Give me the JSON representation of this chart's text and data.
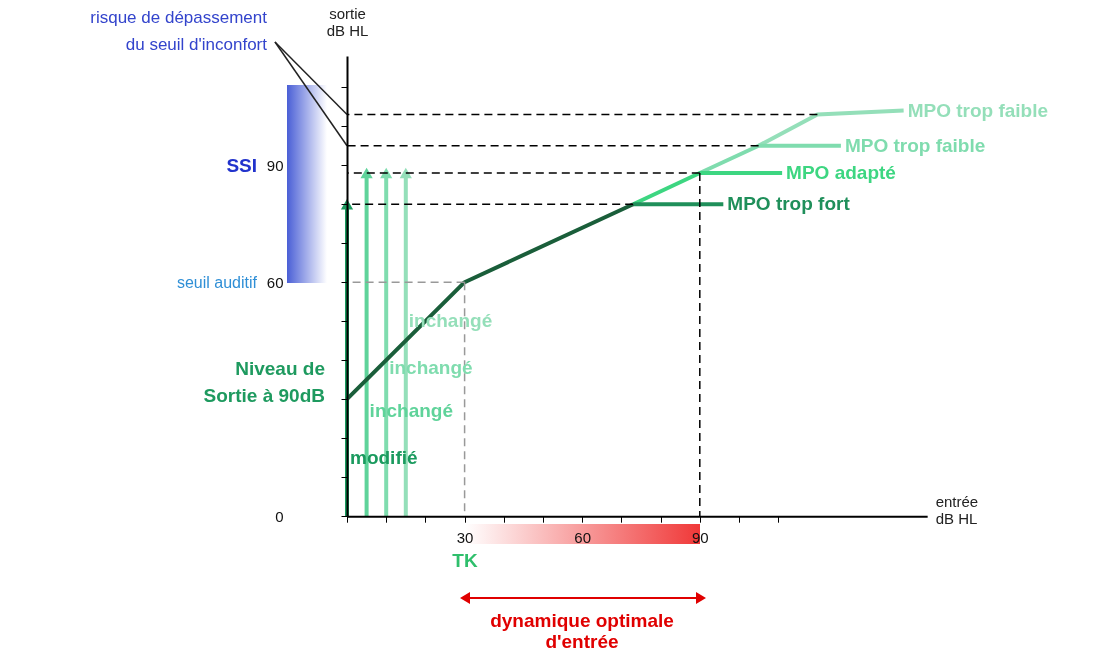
{
  "chart_data": {
    "type": "line",
    "xlabel": "entrée dB HL",
    "ylabel": "sortie dB HL",
    "xlim": [
      0,
      148
    ],
    "ylim": [
      0,
      118
    ],
    "xticks": [
      {
        "value": 0,
        "label": null
      },
      {
        "value": 10,
        "label": null
      },
      {
        "value": 20,
        "label": null
      },
      30,
      {
        "value": 40,
        "label": null
      },
      {
        "value": 50,
        "label": null
      },
      60,
      {
        "value": 70,
        "label": null
      },
      {
        "value": 80,
        "label": null
      },
      90,
      {
        "value": 100,
        "label": null
      },
      {
        "value": 110,
        "label": null
      }
    ],
    "yticks": [
      0,
      {
        "value": 10,
        "label": null
      },
      {
        "value": 20,
        "label": null
      },
      {
        "value": 30,
        "label": null
      },
      {
        "value": 40,
        "label": null
      },
      {
        "value": 50,
        "label": null
      },
      60,
      {
        "value": 70,
        "label": null
      },
      {
        "value": 80,
        "label": null
      },
      90,
      {
        "value": 100,
        "label": null
      },
      {
        "value": 110,
        "label": null
      }
    ],
    "series": [
      {
        "x": [
          0,
          120
        ],
        "values": [
          103,
          103
        ],
        "color": "#000000",
        "line_style": "dashed"
      },
      {
        "x": [
          0,
          105
        ],
        "values": [
          95,
          95
        ],
        "color": "#000000",
        "line_style": "dashed"
      },
      {
        "x": [
          0,
          90
        ],
        "values": [
          88,
          88
        ],
        "color": "#000000",
        "line_style": "dashed"
      },
      {
        "x": [
          0,
          73
        ],
        "values": [
          80,
          80
        ],
        "color": "#000000",
        "line_style": "dashed"
      },
      {
        "x": [
          90,
          90
        ],
        "values": [
          0,
          88
        ],
        "color": "#000000",
        "line_style": "dashed"
      },
      {
        "x": [
          0,
          30
        ],
        "values": [
          60,
          60
        ],
        "color": "#999999",
        "line_style": "dashed"
      },
      {
        "x": [
          30,
          30
        ],
        "values": [
          0,
          60
        ],
        "color": "#999999",
        "line_style": "dashed"
      },
      {
        "x": [
          0,
          0
        ],
        "values": [
          0,
          80
        ],
        "color": "#1a9a5e",
        "marker": "triangle"
      },
      {
        "x": [
          5,
          5
        ],
        "values": [
          0,
          88
        ],
        "color": "#5fd39a",
        "marker": "triangle"
      },
      {
        "x": [
          10,
          10
        ],
        "values": [
          0,
          88
        ],
        "color": "#7fdcae",
        "marker": "triangle"
      },
      {
        "x": [
          15,
          15
        ],
        "values": [
          0,
          88
        ],
        "color": "#94dfb9",
        "marker": "triangle"
      },
      {
        "name": "MPO trop faible",
        "x": [
          105,
          120,
          142
        ],
        "values": [
          95,
          103,
          104
        ],
        "color": "#94dfb9"
      },
      {
        "name": "MPO trop faible",
        "x": [
          90,
          105,
          126
        ],
        "values": [
          88,
          95,
          95
        ],
        "color": "#7fdcae"
      },
      {
        "name": "MPO adapté",
        "x": [
          73,
          90,
          111
        ],
        "values": [
          80,
          88,
          88
        ],
        "color": "#3dd681"
      },
      {
        "name": "MPO trop fort",
        "x": [
          73,
          96
        ],
        "values": [
          80,
          80
        ],
        "color": "#1f8f5a"
      },
      {
        "x": [
          0,
          30,
          73
        ],
        "values": [
          30,
          60,
          80
        ],
        "color": "#1a5e3a"
      }
    ],
    "annotations": [
      {
        "text": "risque de dépassement du seuil d'inconfort",
        "x": 0,
        "y": 103
      },
      "Niveau de Sortie à 90dB",
      "dynamique optimale d'entrée",
      {
        "text": "modifié",
        "x": 0,
        "y": 15
      },
      {
        "text": "inchangé",
        "x": 5,
        "y": 27
      },
      {
        "text": "inchangé",
        "x": 10,
        "y": 38
      },
      {
        "text": "inchangé",
        "x": 15,
        "y": 50
      },
      "SSI",
      "seuil auditif",
      "TK"
    ]
  }
}
